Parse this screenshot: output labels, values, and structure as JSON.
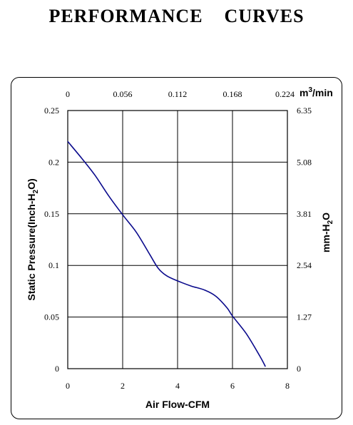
{
  "title": "PERFORMANCE    CURVES",
  "chart_data": {
    "type": "line",
    "xlabel": "Air Flow-CFM",
    "ylabel": "Static Pressure(Inch-H2O)",
    "y2label": "mm-H2O",
    "x2unit": "m3/min",
    "xlim": [
      0,
      8
    ],
    "ylim": [
      0,
      0.25
    ],
    "x_ticks": [
      "0",
      "2",
      "4",
      "6",
      "8"
    ],
    "y_ticks": [
      "0",
      "0.05",
      "0.1",
      "0.15",
      "0.2",
      "0.25"
    ],
    "x2_ticks": [
      "0",
      "0.056",
      "0.112",
      "0.168",
      "0.224"
    ],
    "y2_ticks": [
      "0",
      "1.27",
      "2.54",
      "3.81",
      "5.08",
      "6.35"
    ],
    "grid": true,
    "series": [
      {
        "color": "#0a0a8c",
        "x": [
          0,
          0.5,
          1.0,
          1.5,
          2.0,
          2.5,
          3.0,
          3.3,
          3.6,
          4.0,
          4.5,
          5.0,
          5.4,
          5.8,
          6.0,
          6.5,
          7.0,
          7.2
        ],
        "y": [
          0.22,
          0.204,
          0.187,
          0.167,
          0.149,
          0.132,
          0.11,
          0.097,
          0.09,
          0.085,
          0.08,
          0.076,
          0.07,
          0.059,
          0.051,
          0.034,
          0.012,
          0.002
        ]
      }
    ]
  }
}
